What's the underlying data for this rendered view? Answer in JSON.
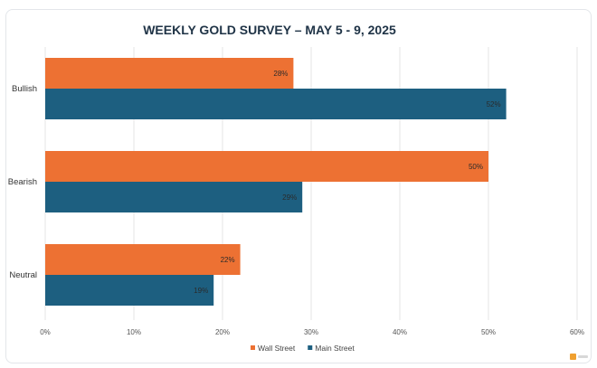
{
  "chart_data": {
    "type": "bar",
    "orientation": "horizontal",
    "title": "WEEKLY GOLD SURVEY – MAY 5 - 9, 2025",
    "categories": [
      "Bullish",
      "Bearish",
      "Neutral"
    ],
    "series": [
      {
        "name": "Wall Street",
        "color": "#ed7133",
        "values": [
          28,
          50,
          22
        ],
        "labels": [
          "28%",
          "50%",
          "22%"
        ]
      },
      {
        "name": "Main Street",
        "color": "#1d5f80",
        "values": [
          52,
          29,
          19
        ],
        "labels": [
          "52%",
          "29%",
          "19%"
        ]
      }
    ],
    "xlim": [
      0,
      60
    ],
    "xticks": [
      0,
      10,
      20,
      30,
      40,
      50,
      60
    ],
    "xtick_labels": [
      "0%",
      "10%",
      "20%",
      "30%",
      "40%",
      "50%",
      "60%"
    ],
    "grid": true,
    "legend_position": "bottom",
    "watermark": "logo-mark"
  }
}
